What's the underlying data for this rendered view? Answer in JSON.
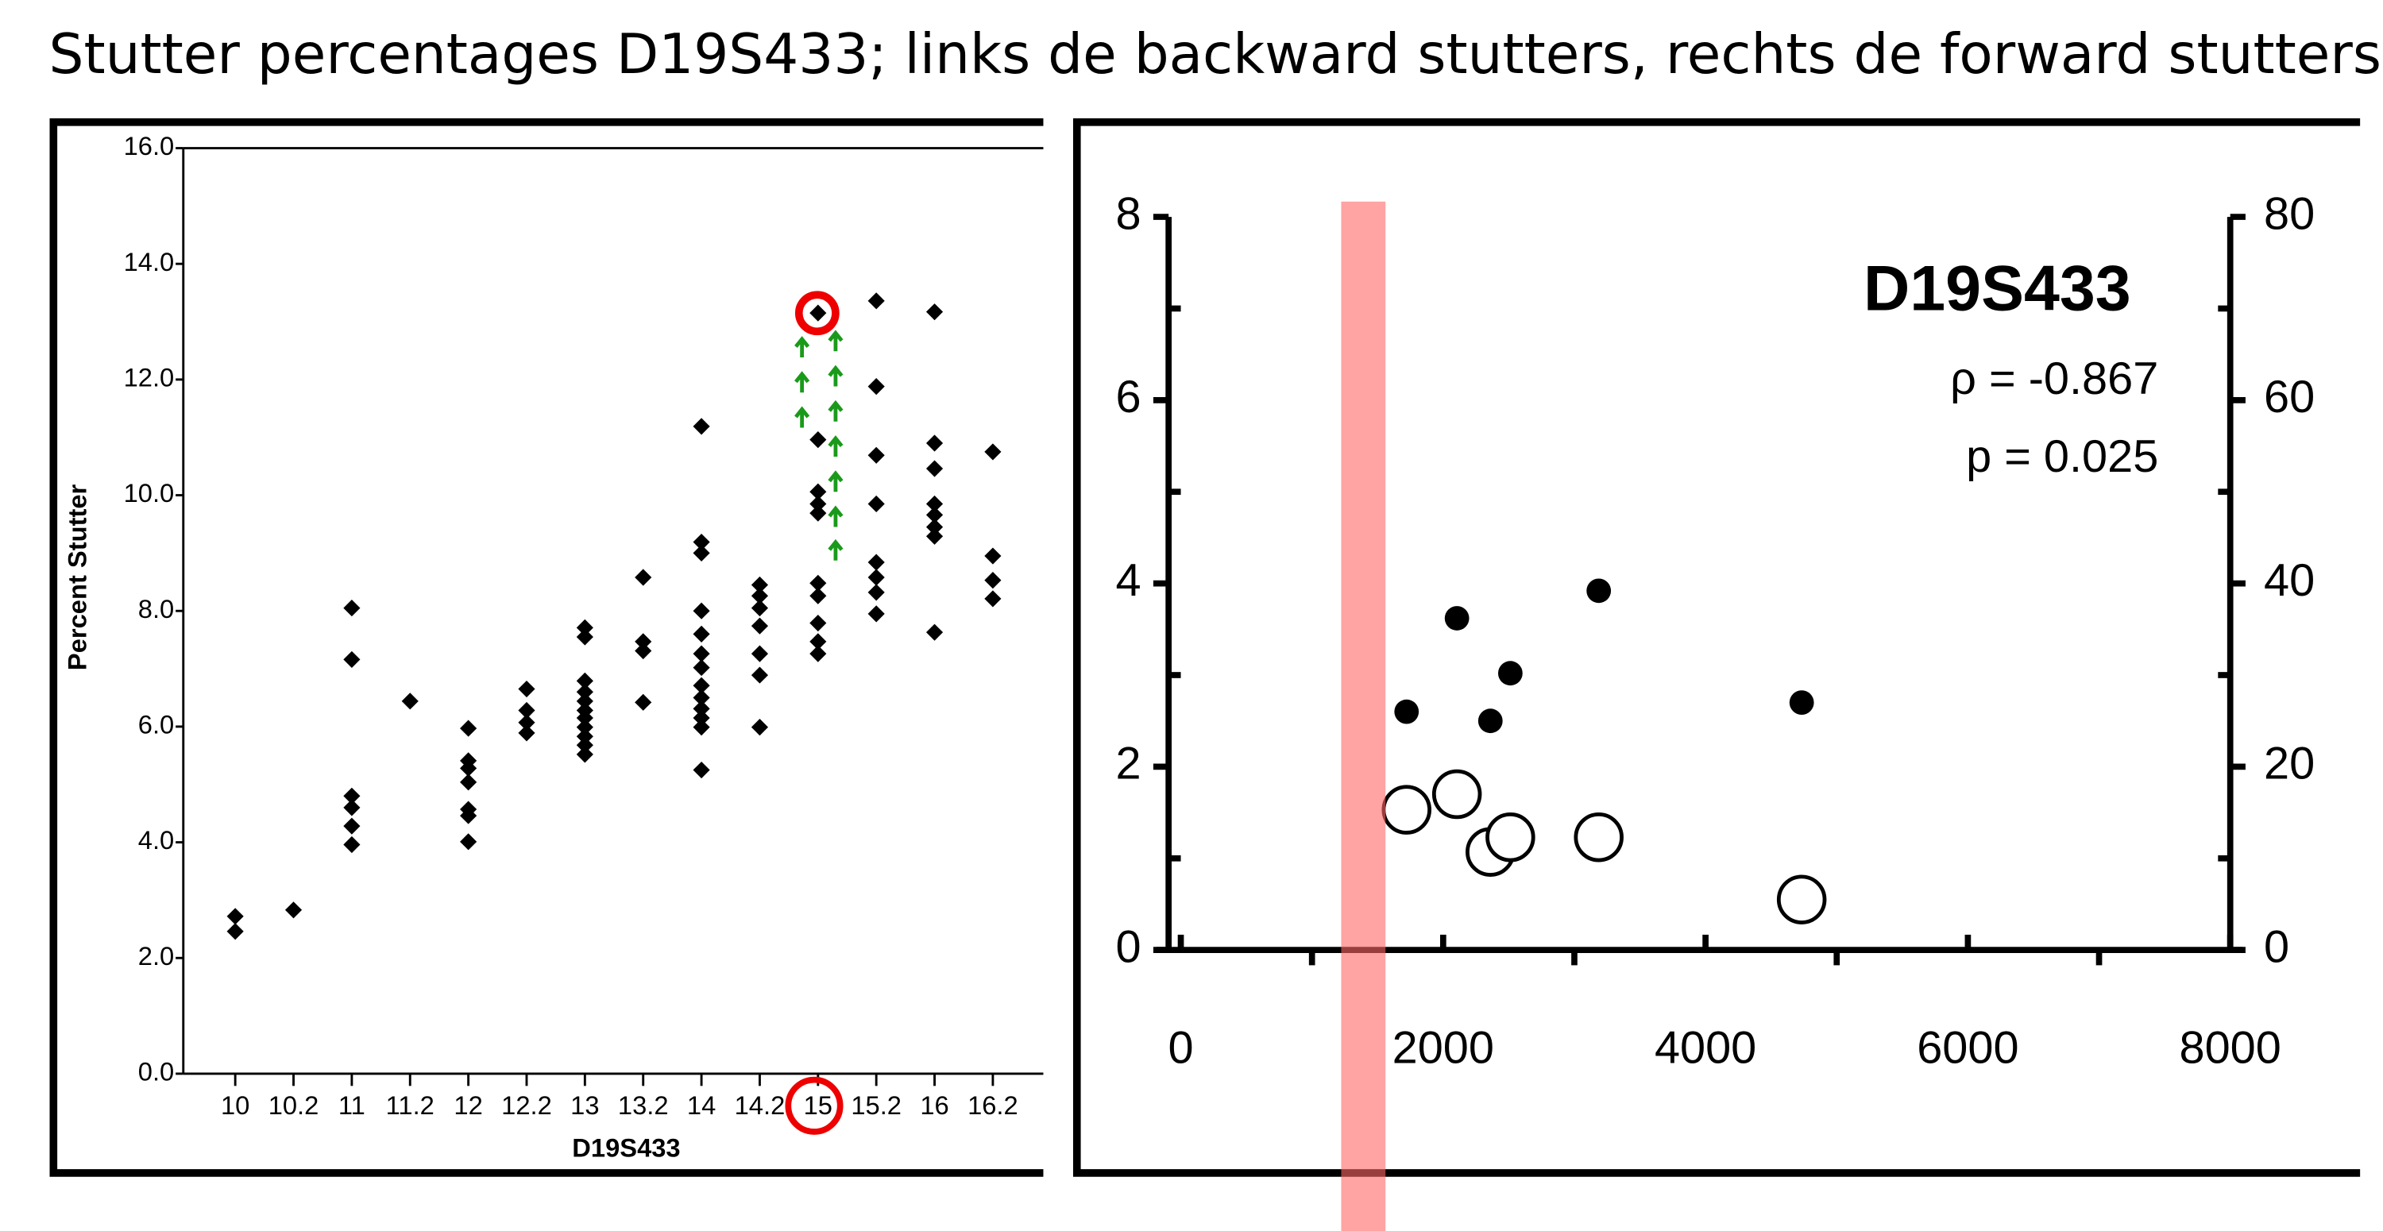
{
  "slide_title": "Stutter percentages D19S433; links de backward stutters, rechts de forward stutters",
  "chart_data": [
    {
      "type": "scatter",
      "x_label": "D19S433",
      "y_label": "Percent Stutter",
      "categories": [
        "10",
        "10.2",
        "11",
        "11.2",
        "12",
        "12.2",
        "13",
        "13.2",
        "14",
        "14.2",
        "15",
        "15.2",
        "16",
        "16.2"
      ],
      "ylim": [
        0,
        16
      ],
      "yticks": [
        {
          "value": 0,
          "label": "0.0"
        },
        {
          "value": 2,
          "label": "2.0"
        },
        {
          "value": 4,
          "label": "4.0"
        },
        {
          "value": 6,
          "label": "6.0"
        },
        {
          "value": 8,
          "label": "8.0"
        },
        {
          "value": 10,
          "label": "10.0"
        },
        {
          "value": 12,
          "label": "12.0"
        },
        {
          "value": 14,
          "label": "14.0"
        },
        {
          "value": 16,
          "label": "16.0"
        }
      ],
      "series": [
        {
          "color": "#000000",
          "marker": "diamond",
          "x": [
            "10",
            "10",
            "10.2",
            "11",
            "11",
            "11",
            "11",
            "11",
            "11",
            "11.2",
            "12",
            "12",
            "12",
            "12",
            "12",
            "12",
            "12",
            "12.2",
            "12.2",
            "12.2",
            "12.2",
            "13",
            "13",
            "13",
            "13",
            "13",
            "13",
            "13",
            "13",
            "13",
            "13",
            "13",
            "13.2",
            "13.2",
            "13.2",
            "13.2",
            "14",
            "14",
            "14",
            "14",
            "14",
            "14",
            "14",
            "14",
            "14",
            "14",
            "14",
            "14",
            "14",
            "14.2",
            "14.2",
            "14.2",
            "14.2",
            "14.2",
            "14.2",
            "14.2",
            "15",
            "15",
            "15",
            "15",
            "15",
            "15",
            "15",
            "15",
            "15",
            "15",
            "15.2",
            "15.2",
            "15.2",
            "15.2",
            "15.2",
            "15.2",
            "15.2",
            "15.2",
            "16",
            "16",
            "16",
            "16",
            "16",
            "16",
            "16",
            "16",
            "16.2",
            "16.2",
            "16.2",
            "16.2"
          ],
          "values": [
            2.72,
            2.46,
            2.83,
            8.05,
            7.16,
            4.8,
            4.6,
            4.28,
            3.96,
            6.44,
            5.97,
            5.41,
            5.28,
            5.04,
            4.57,
            4.46,
            4.01,
            6.65,
            6.28,
            6.07,
            5.89,
            7.71,
            7.55,
            6.79,
            6.6,
            6.44,
            6.28,
            6.15,
            5.99,
            5.83,
            5.68,
            5.52,
            8.58,
            7.47,
            7.31,
            6.42,
            11.19,
            9.19,
            9.0,
            8.0,
            7.6,
            7.26,
            7.02,
            6.71,
            6.5,
            6.31,
            6.15,
            5.99,
            5.25,
            8.45,
            8.26,
            8.05,
            7.74,
            7.26,
            6.89,
            5.99,
            13.15,
            10.96,
            10.06,
            9.85,
            9.69,
            8.48,
            8.26,
            7.79,
            7.47,
            7.26,
            13.36,
            11.88,
            10.69,
            9.85,
            8.84,
            8.58,
            8.32,
            7.95,
            13.17,
            10.9,
            10.46,
            9.85,
            9.66,
            9.45,
            9.29,
            7.63,
            10.75,
            8.95,
            8.53,
            8.21
          ]
        }
      ]
    },
    {
      "type": "scatter",
      "title": "D19S433",
      "annotations": [
        "ρ = -0.867",
        "p = 0.025"
      ],
      "xlim": [
        0,
        8000
      ],
      "xticks": [
        0,
        2000,
        4000,
        6000,
        8000
      ],
      "ylim": [
        0,
        8
      ],
      "yticks": [
        0,
        2,
        4,
        6,
        8
      ],
      "y2lim": [
        0,
        80
      ],
      "y2ticks": [
        0,
        20,
        40,
        60,
        80
      ],
      "series": [
        {
          "color": "#000000",
          "marker": "filled",
          "x": [
            1721,
            2105,
            2512,
            2360,
            3186,
            4733
          ],
          "values": [
            2.6,
            3.62,
            3.02,
            2.5,
            3.92,
            2.7
          ]
        },
        {
          "color": "#000000",
          "marker": "open",
          "x": [
            1721,
            2105,
            2360,
            2512,
            3186,
            4733
          ],
          "values": [
            1.53,
            1.7,
            1.07,
            1.23,
            1.23,
            0.55
          ]
        }
      ]
    }
  ]
}
